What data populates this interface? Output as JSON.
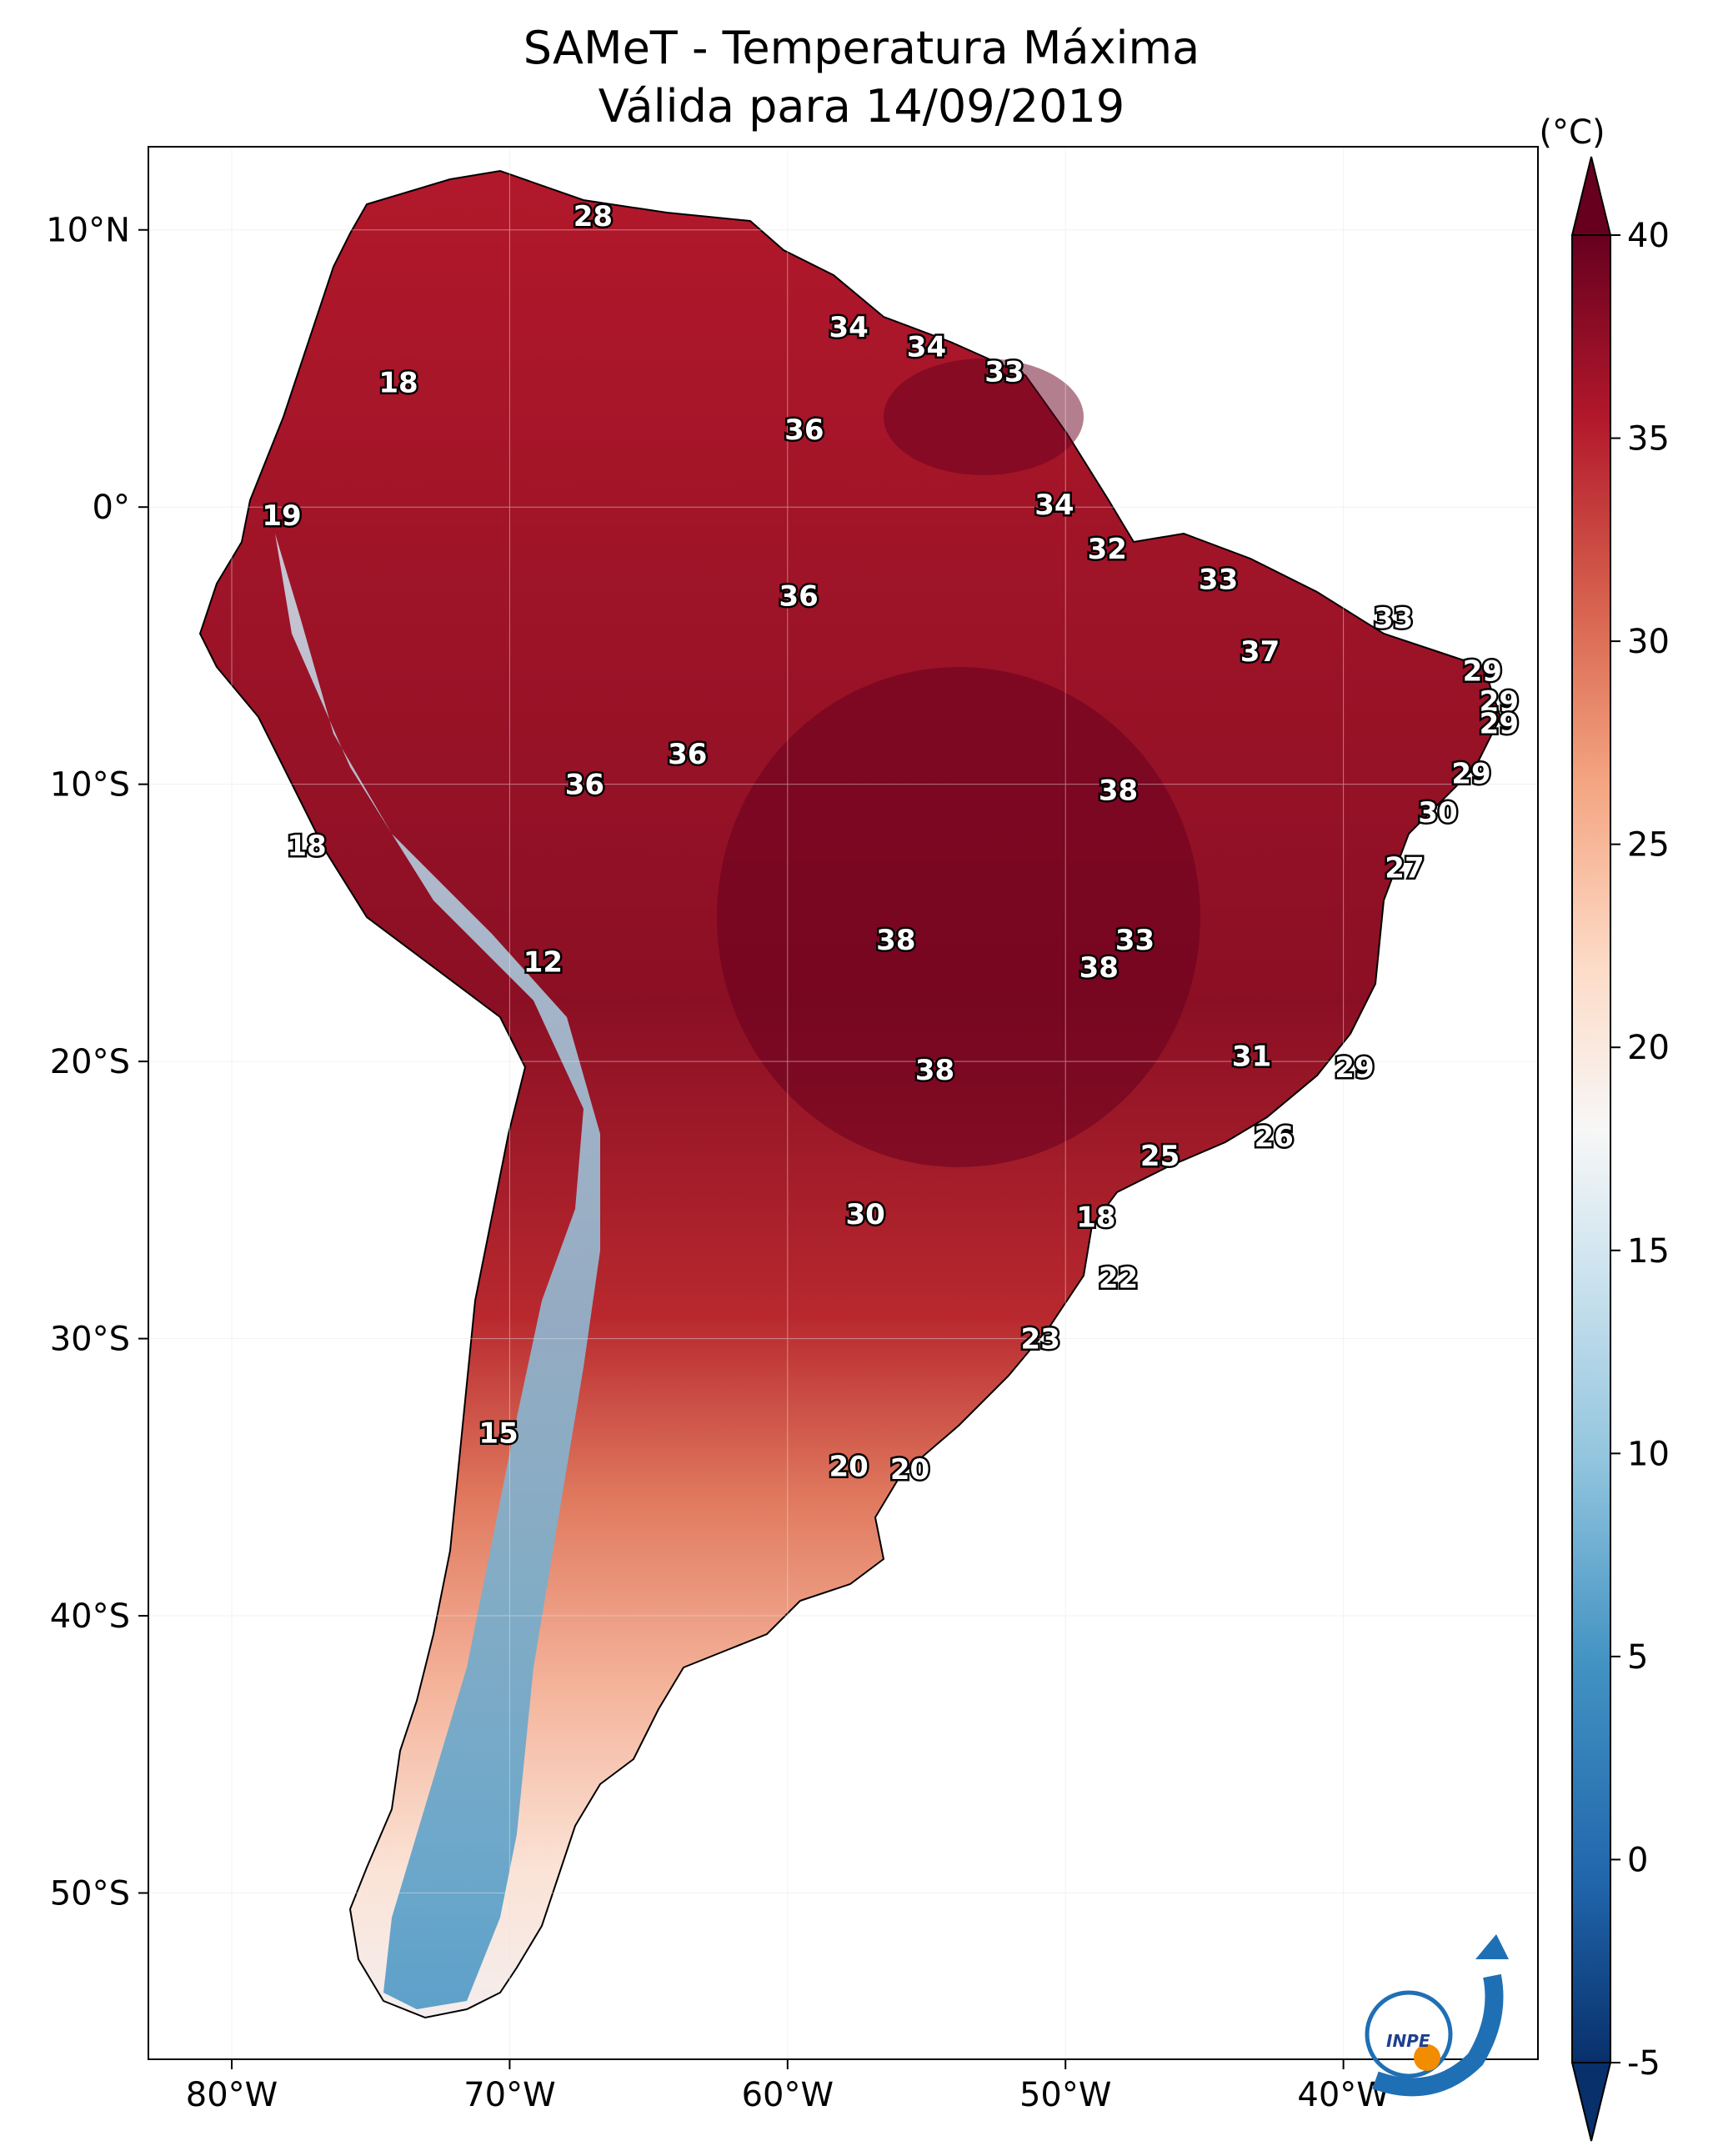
{
  "title": "SAMeT - Temperatura Máxima",
  "subtitle": "Válida para 14/09/2019",
  "colorbar": {
    "unit": "(°C)",
    "min": -5,
    "max": 40,
    "ticks": [
      "40",
      "35",
      "30",
      "25",
      "20",
      "15",
      "10",
      "5",
      "0",
      "-5"
    ],
    "colors": [
      "#08306b",
      "#2166ac",
      "#4393c3",
      "#92c5de",
      "#d1e5f0",
      "#f7f7f7",
      "#fddbc7",
      "#f4a582",
      "#d6604d",
      "#b2182b",
      "#67001f"
    ]
  },
  "axes": {
    "lon_ticks": [
      "80°W",
      "70°W",
      "60°W",
      "50°W",
      "40°W"
    ],
    "lat_ticks": [
      "10°N",
      "0°",
      "10°S",
      "20°S",
      "30°S",
      "40°S",
      "50°S"
    ]
  },
  "logo": {
    "text": "INPE",
    "colors": [
      "#1f6fb5",
      "#f28c00"
    ]
  },
  "chart_data": {
    "type": "heatmap",
    "lon_range": [
      -83,
      -33
    ],
    "lat_range": [
      -56,
      13
    ],
    "labels": [
      {
        "lon": -67,
        "lat": 10.5,
        "value": "28"
      },
      {
        "lon": -74,
        "lat": 4.5,
        "value": "18"
      },
      {
        "lon": -57.8,
        "lat": 6.5,
        "value": "34"
      },
      {
        "lon": -55,
        "lat": 5.8,
        "value": "34"
      },
      {
        "lon": -52.2,
        "lat": 4.9,
        "value": "33"
      },
      {
        "lon": -59.4,
        "lat": 2.8,
        "value": "36"
      },
      {
        "lon": -78.2,
        "lat": -0.3,
        "value": "19"
      },
      {
        "lon": -50.4,
        "lat": 0.1,
        "value": "34"
      },
      {
        "lon": -48.5,
        "lat": -1.5,
        "value": "32"
      },
      {
        "lon": -44.5,
        "lat": -2.6,
        "value": "33"
      },
      {
        "lon": -59.6,
        "lat": -3.2,
        "value": "36"
      },
      {
        "lon": -38.2,
        "lat": -4,
        "value": "33"
      },
      {
        "lon": -43,
        "lat": -5.2,
        "value": "37"
      },
      {
        "lon": -35,
        "lat": -5.9,
        "value": "29"
      },
      {
        "lon": -34.4,
        "lat": -7,
        "value": "29"
      },
      {
        "lon": -34.4,
        "lat": -7.8,
        "value": "29"
      },
      {
        "lon": -63.6,
        "lat": -8.9,
        "value": "36"
      },
      {
        "lon": -67.3,
        "lat": -10,
        "value": "36"
      },
      {
        "lon": -35.4,
        "lat": -9.6,
        "value": "29"
      },
      {
        "lon": -48.1,
        "lat": -10.2,
        "value": "38"
      },
      {
        "lon": -36.6,
        "lat": -11,
        "value": "30"
      },
      {
        "lon": -77.3,
        "lat": -12.2,
        "value": "18"
      },
      {
        "lon": -37.8,
        "lat": -13,
        "value": "27"
      },
      {
        "lon": -56.1,
        "lat": -15.6,
        "value": "38"
      },
      {
        "lon": -47.5,
        "lat": -15.6,
        "value": "33"
      },
      {
        "lon": -48.8,
        "lat": -16.6,
        "value": "38"
      },
      {
        "lon": -68.8,
        "lat": -16.4,
        "value": "12"
      },
      {
        "lon": -43.3,
        "lat": -19.8,
        "value": "31"
      },
      {
        "lon": -39.6,
        "lat": -20.2,
        "value": "29"
      },
      {
        "lon": -54.7,
        "lat": -20.3,
        "value": "38"
      },
      {
        "lon": -42.5,
        "lat": -22.7,
        "value": "26"
      },
      {
        "lon": -46.6,
        "lat": -23.4,
        "value": "25"
      },
      {
        "lon": -48.9,
        "lat": -25.6,
        "value": "18"
      },
      {
        "lon": -57.2,
        "lat": -25.5,
        "value": "30"
      },
      {
        "lon": -48.1,
        "lat": -27.8,
        "value": "22"
      },
      {
        "lon": -50.9,
        "lat": -30,
        "value": "23"
      },
      {
        "lon": -70.4,
        "lat": -33.4,
        "value": "15"
      },
      {
        "lon": -57.8,
        "lat": -34.6,
        "value": "20"
      },
      {
        "lon": -55.6,
        "lat": -34.7,
        "value": "20"
      }
    ]
  }
}
